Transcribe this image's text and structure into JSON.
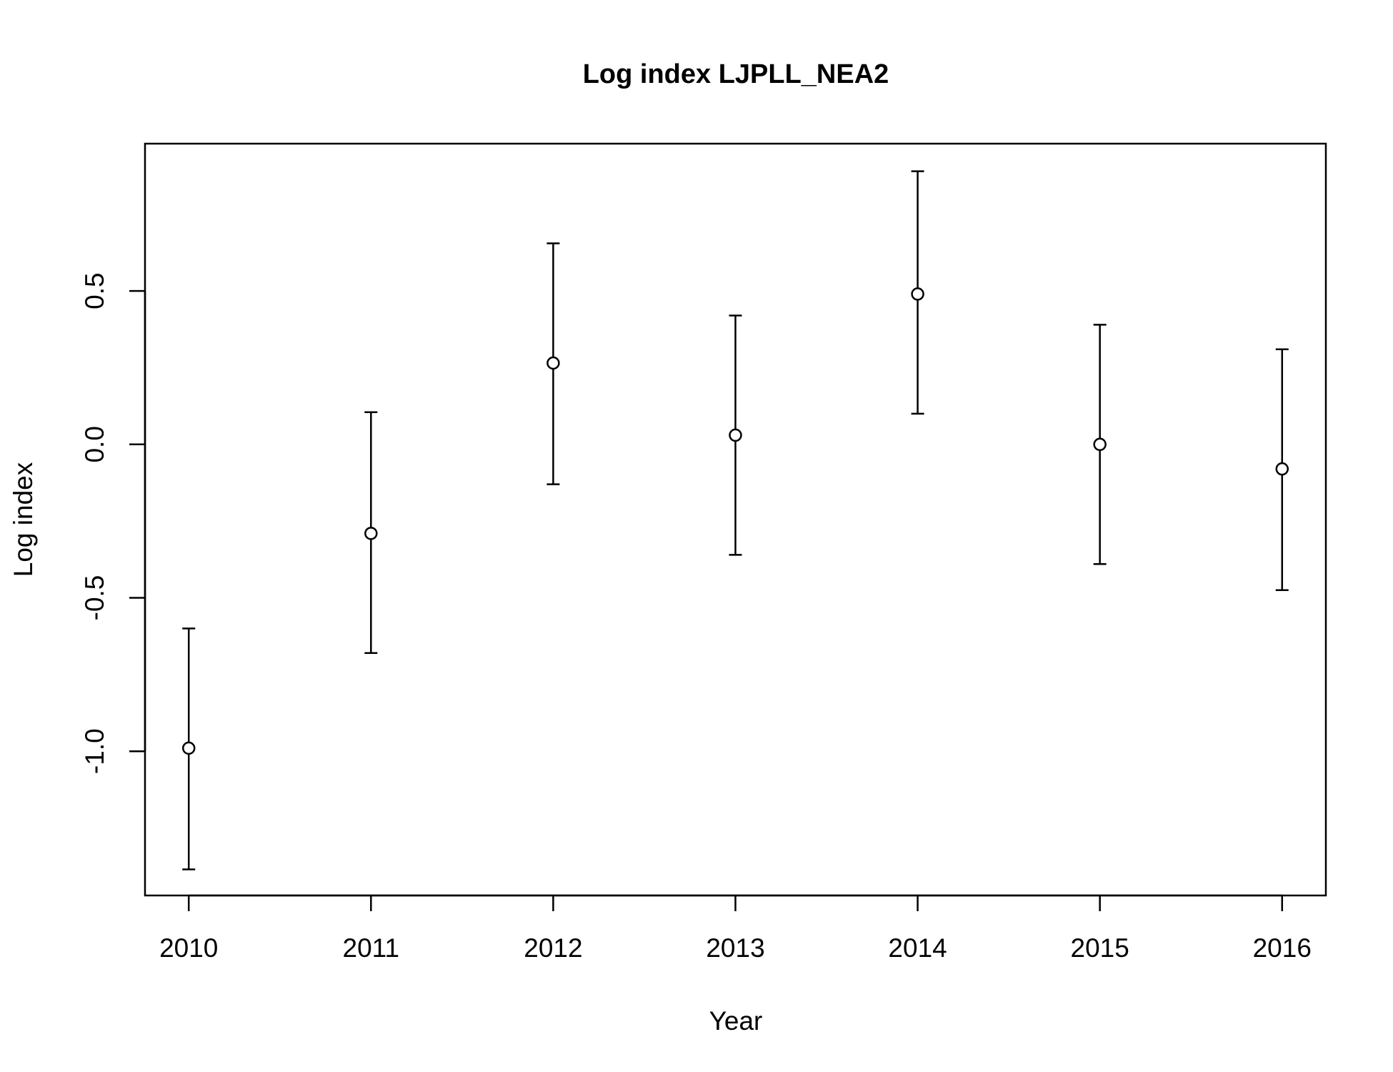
{
  "chart_data": {
    "type": "scatter",
    "title": "Log index LJPLL_NEA2",
    "xlabel": "Year",
    "ylabel": "Log index",
    "x": [
      2010,
      2011,
      2012,
      2013,
      2014,
      2015,
      2016
    ],
    "y": [
      -0.99,
      -0.29,
      0.265,
      0.03,
      0.49,
      0.0,
      -0.08
    ],
    "lower": [
      -1.385,
      -0.68,
      -0.13,
      -0.36,
      0.1,
      -0.39,
      -0.475
    ],
    "upper": [
      -0.6,
      0.105,
      0.655,
      0.42,
      0.89,
      0.39,
      0.31
    ],
    "xticks": [
      "2010",
      "2011",
      "2012",
      "2013",
      "2014",
      "2015",
      "2016"
    ],
    "yticks": [
      {
        "value": -1.0,
        "label": "-1.0"
      },
      {
        "value": -0.5,
        "label": "-0.5"
      },
      {
        "value": 0.0,
        "label": "0.0"
      },
      {
        "value": 0.5,
        "label": "0.5"
      }
    ],
    "xlim": [
      2009.76,
      2016.24
    ],
    "ylim": [
      -1.47,
      0.98
    ],
    "grid": false,
    "marker": "open-circle",
    "error_bars": true
  }
}
